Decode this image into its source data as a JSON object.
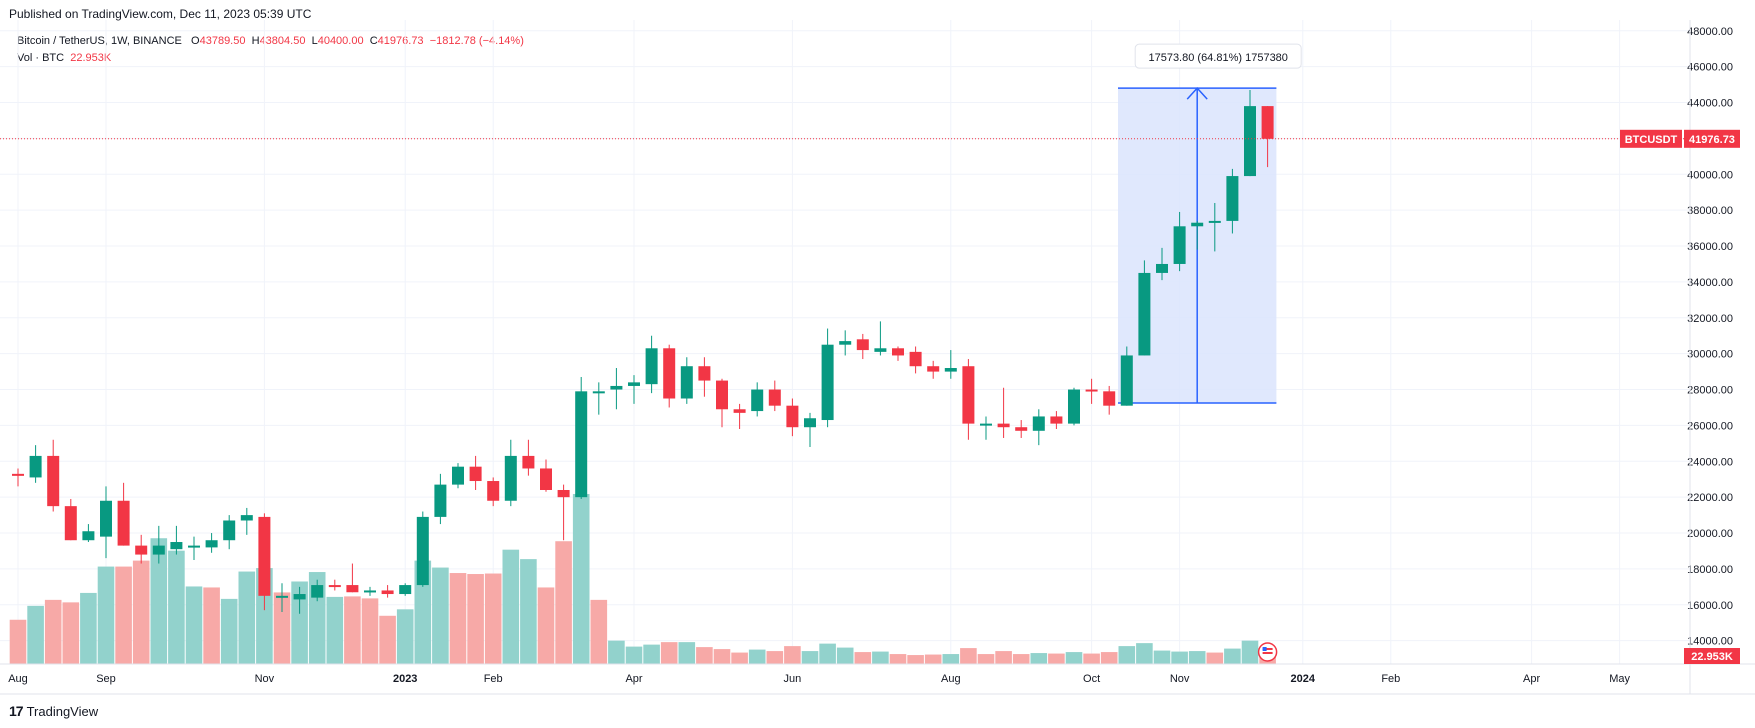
{
  "header": {
    "published": "Published on TradingView.com, Dec 11, 2023 05:39 UTC"
  },
  "legend": {
    "symbol": "Bitcoin / TetherUS, 1W, BINANCE",
    "o_label": "O",
    "o": "43789.50",
    "h_label": "H",
    "h": "43804.50",
    "l_label": "L",
    "l": "40400.00",
    "c_label": "C",
    "c": "41976.73",
    "change": "−1812.78 (−4.14%)",
    "vol_label": "Vol · BTC",
    "vol": "22.953K"
  },
  "footer": {
    "logo": "17",
    "brand": "TradingView"
  },
  "colors": {
    "up": "#089981",
    "down": "#f23645",
    "vol_up": "#92d2cc",
    "vol_down": "#f7a9a7",
    "measure": "#2962ff",
    "measure_fill": "#dbe4fd"
  },
  "chart_data": {
    "type": "candlestick",
    "symbol": "BTCUSDT",
    "last_price_label": "41976.73",
    "last_volume_label": "22.953K",
    "ylim": [
      12700,
      48600
    ],
    "y_ticks": [
      "48000.00",
      "46000.00",
      "44000.00",
      "42000.00",
      "40000.00",
      "38000.00",
      "36000.00",
      "34000.00",
      "32000.00",
      "30000.00",
      "28000.00",
      "26000.00",
      "24000.00",
      "22000.00",
      "20000.00",
      "18000.00",
      "16000.00",
      "14000.00"
    ],
    "x_ticks": [
      {
        "label": "Aug",
        "week": 0
      },
      {
        "label": "Sep",
        "week": 5
      },
      {
        "label": "Nov",
        "week": 14
      },
      {
        "label": "2023",
        "week": 22
      },
      {
        "label": "Feb",
        "week": 27
      },
      {
        "label": "Apr",
        "week": 35
      },
      {
        "label": "Jun",
        "week": 44
      },
      {
        "label": "Aug",
        "week": 53
      },
      {
        "label": "Oct",
        "week": 61
      },
      {
        "label": "Nov",
        "week": 66
      },
      {
        "label": "2024",
        "week": 73
      },
      {
        "label": "Feb",
        "week": 78
      },
      {
        "label": "Apr",
        "week": 86
      },
      {
        "label": "May",
        "week": 91
      }
    ],
    "candles": [
      {
        "o": 23300,
        "h": 23600,
        "l": 22600,
        "c": 23200
      },
      {
        "o": 23100,
        "h": 24900,
        "l": 22800,
        "c": 24300
      },
      {
        "o": 24300,
        "h": 25200,
        "l": 21200,
        "c": 21500
      },
      {
        "o": 21500,
        "h": 21900,
        "l": 19600,
        "c": 19600
      },
      {
        "o": 19600,
        "h": 20500,
        "l": 19500,
        "c": 20100
      },
      {
        "o": 19800,
        "h": 22600,
        "l": 18600,
        "c": 21800
      },
      {
        "o": 21800,
        "h": 22800,
        "l": 19300,
        "c": 19300
      },
      {
        "o": 19300,
        "h": 19900,
        "l": 18300,
        "c": 18800
      },
      {
        "o": 18800,
        "h": 20400,
        "l": 18300,
        "c": 19300
      },
      {
        "o": 19100,
        "h": 20400,
        "l": 18800,
        "c": 19500
      },
      {
        "o": 19300,
        "h": 19800,
        "l": 18500,
        "c": 19300
      },
      {
        "o": 19200,
        "h": 20000,
        "l": 18900,
        "c": 19600
      },
      {
        "o": 19600,
        "h": 21000,
        "l": 19100,
        "c": 20700
      },
      {
        "o": 20700,
        "h": 21400,
        "l": 19900,
        "c": 21000
      },
      {
        "o": 20900,
        "h": 21100,
        "l": 15700,
        "c": 16500
      },
      {
        "o": 16500,
        "h": 17200,
        "l": 15600,
        "c": 16500
      },
      {
        "o": 16300,
        "h": 17000,
        "l": 15500,
        "c": 16600
      },
      {
        "o": 16400,
        "h": 17400,
        "l": 16200,
        "c": 17100
      },
      {
        "o": 17100,
        "h": 17400,
        "l": 16800,
        "c": 17000
      },
      {
        "o": 17100,
        "h": 18300,
        "l": 16700,
        "c": 16700
      },
      {
        "o": 16800,
        "h": 17000,
        "l": 16500,
        "c": 16800
      },
      {
        "o": 16800,
        "h": 17100,
        "l": 16400,
        "c": 16600
      },
      {
        "o": 16600,
        "h": 17200,
        "l": 16500,
        "c": 17100
      },
      {
        "o": 17100,
        "h": 21200,
        "l": 17000,
        "c": 20900
      },
      {
        "o": 20900,
        "h": 23300,
        "l": 20500,
        "c": 22700
      },
      {
        "o": 22700,
        "h": 23900,
        "l": 22500,
        "c": 23700
      },
      {
        "o": 23700,
        "h": 24300,
        "l": 22400,
        "c": 22900
      },
      {
        "o": 22900,
        "h": 23100,
        "l": 21500,
        "c": 21800
      },
      {
        "o": 21800,
        "h": 25200,
        "l": 21500,
        "c": 24300
      },
      {
        "o": 24300,
        "h": 25200,
        "l": 23200,
        "c": 23600
      },
      {
        "o": 23600,
        "h": 24100,
        "l": 22300,
        "c": 22400
      },
      {
        "o": 22400,
        "h": 22700,
        "l": 19600,
        "c": 22000
      },
      {
        "o": 22000,
        "h": 28700,
        "l": 21900,
        "c": 27900
      },
      {
        "o": 27900,
        "h": 28400,
        "l": 26600,
        "c": 27900
      },
      {
        "o": 28000,
        "h": 29200,
        "l": 26900,
        "c": 28200
      },
      {
        "o": 28200,
        "h": 28800,
        "l": 27200,
        "c": 28400
      },
      {
        "o": 28300,
        "h": 31000,
        "l": 27800,
        "c": 30300
      },
      {
        "o": 30300,
        "h": 30500,
        "l": 27000,
        "c": 27500
      },
      {
        "o": 27500,
        "h": 29800,
        "l": 27200,
        "c": 29300
      },
      {
        "o": 29300,
        "h": 29800,
        "l": 27600,
        "c": 28500
      },
      {
        "o": 28500,
        "h": 28600,
        "l": 25900,
        "c": 26900
      },
      {
        "o": 26900,
        "h": 27200,
        "l": 25800,
        "c": 26700
      },
      {
        "o": 26800,
        "h": 28400,
        "l": 26500,
        "c": 28000
      },
      {
        "o": 28000,
        "h": 28500,
        "l": 26800,
        "c": 27100
      },
      {
        "o": 27100,
        "h": 27500,
        "l": 25400,
        "c": 25900
      },
      {
        "o": 25900,
        "h": 26700,
        "l": 24800,
        "c": 26400
      },
      {
        "o": 26300,
        "h": 31400,
        "l": 25900,
        "c": 30500
      },
      {
        "o": 30500,
        "h": 31300,
        "l": 29900,
        "c": 30700
      },
      {
        "o": 30800,
        "h": 31100,
        "l": 29700,
        "c": 30200
      },
      {
        "o": 30100,
        "h": 31800,
        "l": 29900,
        "c": 30300
      },
      {
        "o": 30300,
        "h": 30400,
        "l": 29600,
        "c": 29900
      },
      {
        "o": 30100,
        "h": 30400,
        "l": 28900,
        "c": 29300
      },
      {
        "o": 29300,
        "h": 29600,
        "l": 28600,
        "c": 29000
      },
      {
        "o": 29000,
        "h": 30200,
        "l": 28600,
        "c": 29200
      },
      {
        "o": 29300,
        "h": 29700,
        "l": 25200,
        "c": 26100
      },
      {
        "o": 26100,
        "h": 26500,
        "l": 25200,
        "c": 26100
      },
      {
        "o": 26100,
        "h": 28100,
        "l": 25300,
        "c": 25900
      },
      {
        "o": 25900,
        "h": 26300,
        "l": 25300,
        "c": 25700
      },
      {
        "o": 25700,
        "h": 26900,
        "l": 24900,
        "c": 26500
      },
      {
        "o": 26500,
        "h": 26800,
        "l": 25800,
        "c": 26100
      },
      {
        "o": 26100,
        "h": 28100,
        "l": 26000,
        "c": 28000
      },
      {
        "o": 28000,
        "h": 28600,
        "l": 27200,
        "c": 27900
      },
      {
        "o": 27900,
        "h": 28200,
        "l": 26600,
        "c": 27100
      },
      {
        "o": 27100,
        "h": 30400,
        "l": 27100,
        "c": 29900
      },
      {
        "o": 29900,
        "h": 35200,
        "l": 29900,
        "c": 34500
      },
      {
        "o": 34500,
        "h": 35900,
        "l": 34100,
        "c": 35000
      },
      {
        "o": 35000,
        "h": 37900,
        "l": 34600,
        "c": 37100
      },
      {
        "o": 37100,
        "h": 37400,
        "l": 35800,
        "c": 37300
      },
      {
        "o": 37300,
        "h": 38400,
        "l": 35700,
        "c": 37400
      },
      {
        "o": 37400,
        "h": 40300,
        "l": 36700,
        "c": 39900
      },
      {
        "o": 39900,
        "h": 44700,
        "l": 39900,
        "c": 43800
      },
      {
        "o": 43800,
        "h": 43800,
        "l": 40400,
        "c": 41977
      }
    ],
    "volume": [
      {
        "v": 8.9,
        "up": false
      },
      {
        "v": 11.7,
        "up": true
      },
      {
        "v": 12.9,
        "up": false
      },
      {
        "v": 12.4,
        "up": false
      },
      {
        "v": 14.3,
        "up": true
      },
      {
        "v": 19.6,
        "up": true
      },
      {
        "v": 19.6,
        "up": false
      },
      {
        "v": 20.8,
        "up": false
      },
      {
        "v": 25.3,
        "up": true
      },
      {
        "v": 22.8,
        "up": true
      },
      {
        "v": 15.6,
        "up": true
      },
      {
        "v": 15.4,
        "up": false
      },
      {
        "v": 13.1,
        "up": true
      },
      {
        "v": 18.6,
        "up": true
      },
      {
        "v": 19.3,
        "up": true
      },
      {
        "v": 14.4,
        "up": false
      },
      {
        "v": 16.6,
        "up": true
      },
      {
        "v": 18.5,
        "up": true
      },
      {
        "v": 13.5,
        "up": true
      },
      {
        "v": 13.6,
        "up": false
      },
      {
        "v": 13.2,
        "up": false
      },
      {
        "v": 9.7,
        "up": false
      },
      {
        "v": 11.0,
        "up": true
      },
      {
        "v": 20.8,
        "up": true
      },
      {
        "v": 19.4,
        "up": true
      },
      {
        "v": 18.3,
        "up": false
      },
      {
        "v": 18.1,
        "up": false
      },
      {
        "v": 18.2,
        "up": false
      },
      {
        "v": 23.0,
        "up": true
      },
      {
        "v": 21.1,
        "up": true
      },
      {
        "v": 15.4,
        "up": false
      },
      {
        "v": 24.7,
        "up": false
      },
      {
        "v": 34.2,
        "up": true
      },
      {
        "v": 12.9,
        "up": false
      },
      {
        "v": 4.7,
        "up": true
      },
      {
        "v": 3.5,
        "up": true
      },
      {
        "v": 3.9,
        "up": true
      },
      {
        "v": 4.4,
        "up": false
      },
      {
        "v": 4.4,
        "up": true
      },
      {
        "v": 3.4,
        "up": false
      },
      {
        "v": 3.0,
        "up": false
      },
      {
        "v": 2.3,
        "up": false
      },
      {
        "v": 2.9,
        "up": true
      },
      {
        "v": 2.6,
        "up": false
      },
      {
        "v": 3.6,
        "up": false
      },
      {
        "v": 2.6,
        "up": true
      },
      {
        "v": 4.1,
        "up": true
      },
      {
        "v": 3.3,
        "up": true
      },
      {
        "v": 2.4,
        "up": false
      },
      {
        "v": 2.5,
        "up": true
      },
      {
        "v": 2.0,
        "up": false
      },
      {
        "v": 1.8,
        "up": false
      },
      {
        "v": 1.9,
        "up": false
      },
      {
        "v": 2.0,
        "up": true
      },
      {
        "v": 3.2,
        "up": false
      },
      {
        "v": 2.0,
        "up": false
      },
      {
        "v": 2.6,
        "up": false
      },
      {
        "v": 2.0,
        "up": false
      },
      {
        "v": 2.2,
        "up": true
      },
      {
        "v": 2.1,
        "up": false
      },
      {
        "v": 2.4,
        "up": true
      },
      {
        "v": 2.1,
        "up": false
      },
      {
        "v": 2.4,
        "up": false
      },
      {
        "v": 3.6,
        "up": true
      },
      {
        "v": 4.2,
        "up": true
      },
      {
        "v": 2.7,
        "up": true
      },
      {
        "v": 2.5,
        "up": true
      },
      {
        "v": 2.6,
        "up": true
      },
      {
        "v": 2.3,
        "up": false
      },
      {
        "v": 3.1,
        "up": true
      },
      {
        "v": 4.7,
        "up": true
      },
      {
        "v": 2.2,
        "up": false
      }
    ],
    "volume_max": 34.2,
    "measure": {
      "from_week": 63,
      "to_week": 71,
      "low": 27250,
      "high": 44800,
      "label": "17573.80 (64.81%) 1757380"
    }
  }
}
